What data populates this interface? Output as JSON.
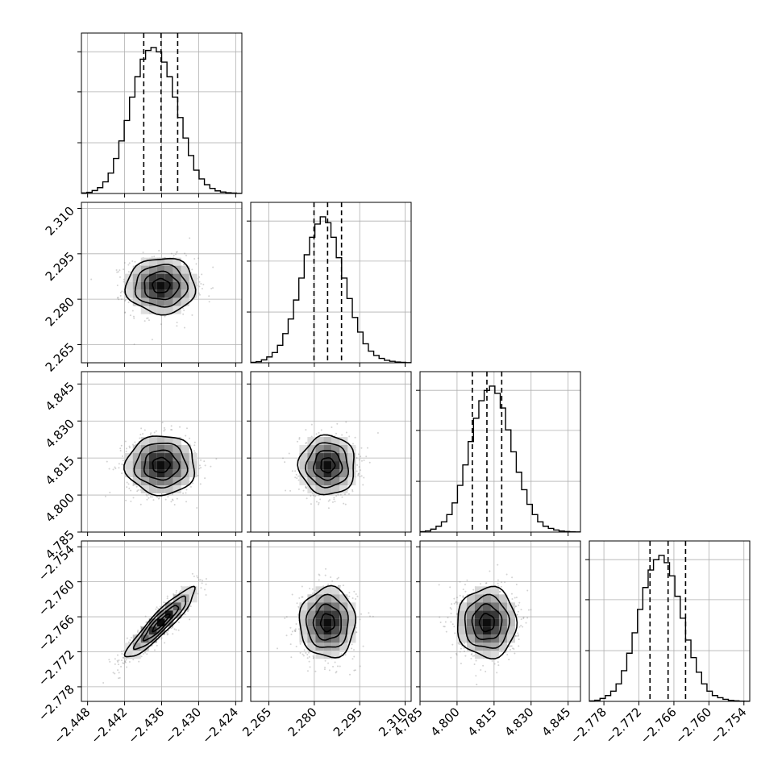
{
  "chart_data": {
    "type": "corner",
    "title": "",
    "parameters": [
      {
        "index": 0,
        "label": "",
        "range": [
          -2.449,
          -2.423
        ],
        "ticks": [
          -2.448,
          -2.442,
          -2.436,
          -2.43,
          -2.424
        ],
        "tick_labels": [
          "−2.448",
          "−2.442",
          "−2.436",
          "−2.430",
          "−2.424"
        ],
        "quantiles": [
          -2.4389,
          -2.4361,
          -2.4334
        ]
      },
      {
        "index": 1,
        "label": "",
        "range": [
          2.259,
          2.312
        ],
        "ticks": [
          2.265,
          2.28,
          2.295,
          2.31
        ],
        "tick_labels": [
          "2.265",
          "2.280",
          "2.295",
          "2.310"
        ],
        "quantiles": [
          2.2799,
          2.2844,
          2.289
        ]
      },
      {
        "index": 2,
        "label": "",
        "range": [
          4.785,
          4.85
        ],
        "ticks": [
          4.785,
          4.8,
          4.815,
          4.83,
          4.845
        ],
        "tick_labels": [
          "4.785",
          "4.800",
          "4.815",
          "4.830",
          "4.845"
        ],
        "quantiles": [
          4.8062,
          4.8121,
          4.8181
        ]
      },
      {
        "index": 3,
        "label": "",
        "range": [
          -2.7805,
          -2.753
        ],
        "ticks": [
          -2.778,
          -2.772,
          -2.766,
          -2.76,
          -2.754
        ],
        "tick_labels": [
          "−2.778",
          "−2.772",
          "−2.766",
          "−2.760",
          "−2.754"
        ],
        "quantiles": [
          -2.7701,
          -2.767,
          -2.764
        ]
      }
    ],
    "histograms": [
      {
        "param": 0,
        "bins": 30,
        "values": [
          0.004,
          0.008,
          0.02,
          0.04,
          0.08,
          0.14,
          0.24,
          0.36,
          0.5,
          0.66,
          0.8,
          0.92,
          0.98,
          1.0,
          0.97,
          0.9,
          0.8,
          0.66,
          0.52,
          0.38,
          0.26,
          0.16,
          0.1,
          0.06,
          0.035,
          0.018,
          0.01,
          0.005,
          0.003,
          0.001
        ]
      },
      {
        "param": 1,
        "bins": 30,
        "values": [
          0.003,
          0.008,
          0.02,
          0.04,
          0.07,
          0.12,
          0.2,
          0.3,
          0.43,
          0.58,
          0.74,
          0.86,
          0.95,
          1.0,
          0.96,
          0.86,
          0.72,
          0.58,
          0.44,
          0.31,
          0.21,
          0.13,
          0.08,
          0.05,
          0.03,
          0.017,
          0.01,
          0.005,
          0.003,
          0.001
        ]
      },
      {
        "param": 2,
        "bins": 30,
        "values": [
          0.003,
          0.008,
          0.02,
          0.04,
          0.07,
          0.12,
          0.2,
          0.32,
          0.46,
          0.62,
          0.78,
          0.9,
          0.97,
          1.0,
          0.95,
          0.85,
          0.7,
          0.55,
          0.41,
          0.29,
          0.19,
          0.12,
          0.07,
          0.04,
          0.025,
          0.014,
          0.007,
          0.004,
          0.002,
          0.001
        ]
      },
      {
        "param": 3,
        "bins": 30,
        "values": [
          0.003,
          0.008,
          0.02,
          0.04,
          0.07,
          0.12,
          0.21,
          0.33,
          0.47,
          0.63,
          0.78,
          0.9,
          0.97,
          1.0,
          0.95,
          0.86,
          0.72,
          0.57,
          0.42,
          0.3,
          0.2,
          0.12,
          0.07,
          0.04,
          0.025,
          0.014,
          0.007,
          0.004,
          0.002,
          0.001
        ]
      }
    ],
    "scatter_2d": [
      {
        "x_param": 0,
        "y_param": 1,
        "x_center": -2.4361,
        "y_center": 2.2844,
        "x_std": 0.0028,
        "y_std": 0.0046,
        "correlation": 0.0
      },
      {
        "x_param": 0,
        "y_param": 2,
        "x_center": -2.4361,
        "y_center": 4.8121,
        "x_std": 0.0028,
        "y_std": 0.006,
        "correlation": 0.0
      },
      {
        "x_param": 1,
        "y_param": 2,
        "x_center": 2.2844,
        "y_center": 4.8121,
        "x_std": 0.0046,
        "y_std": 0.006,
        "correlation": 0.0
      },
      {
        "x_param": 0,
        "y_param": 3,
        "x_center": -2.4361,
        "y_center": -2.767,
        "x_std": 0.0028,
        "y_std": 0.003,
        "correlation": 0.92
      },
      {
        "x_param": 1,
        "y_param": 3,
        "x_center": 2.2844,
        "y_center": -2.767,
        "x_std": 0.0046,
        "y_std": 0.003,
        "correlation": 0.0
      },
      {
        "x_param": 2,
        "y_param": 3,
        "x_center": 4.8121,
        "y_center": -2.767,
        "x_std": 0.006,
        "y_std": 0.003,
        "correlation": 0.0
      }
    ],
    "contour_levels_sigma": [
      0.5,
      1.0,
      1.5,
      2.0
    ],
    "grid": true,
    "colors": {
      "hist_line": "#000000",
      "quantile_line": "#000000",
      "scatter_point": "#808080",
      "grid": "#b0b0b0",
      "contour": "#000000"
    }
  }
}
